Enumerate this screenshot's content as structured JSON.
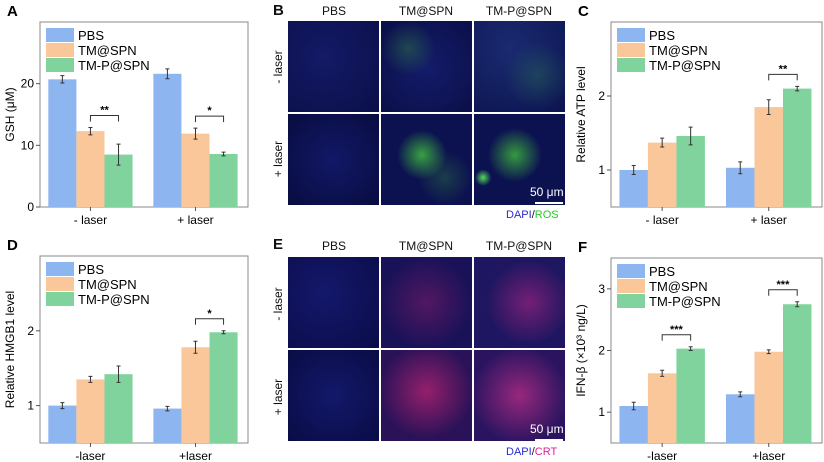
{
  "colors": {
    "PBS": "#8db5f0",
    "TM@SPN": "#f9c79a",
    "TM-P@SPN": "#80d39c"
  },
  "panels": {
    "B": {
      "letter": "B",
      "columns": [
        "PBS",
        "TM@SPN",
        "TM-P@SPN"
      ],
      "rows": [
        "- laser",
        "+ laser"
      ],
      "scale": "50 μm",
      "stain_a": "DAPI",
      "stain_sep": "/",
      "stain_b": "ROS",
      "stain_b_color": "#22cc22"
    },
    "E": {
      "letter": "E",
      "columns": [
        "PBS",
        "TM@SPN",
        "TM-P@SPN"
      ],
      "rows": [
        "- laser",
        "+ laser"
      ],
      "scale": "50 μm",
      "stain_a": "DAPI",
      "stain_sep": "/",
      "stain_b": "CRT",
      "stain_b_color": "#e0209a"
    }
  },
  "chart_data": [
    {
      "id": "A",
      "letter": "A",
      "type": "bar",
      "ylabel": "GSH (μM)",
      "categories": [
        "- laser",
        "+ laser"
      ],
      "ylim": [
        0,
        30
      ],
      "yticks": [
        0,
        10,
        20
      ],
      "series": [
        {
          "name": "PBS",
          "values": [
            20.7,
            21.6
          ],
          "errors": [
            0.6,
            0.8
          ]
        },
        {
          "name": "TM@SPN",
          "values": [
            12.3,
            11.9
          ],
          "errors": [
            0.6,
            0.9
          ]
        },
        {
          "name": "TM-P@SPN",
          "values": [
            8.5,
            8.6
          ],
          "errors": [
            1.7,
            0.3
          ]
        }
      ],
      "significance": [
        {
          "group": 0,
          "label": "**"
        },
        {
          "group": 1,
          "label": "*"
        }
      ],
      "legend": "top-left"
    },
    {
      "id": "C",
      "letter": "C",
      "type": "bar",
      "ylabel": "Relative ATP level",
      "categories": [
        "- laser",
        "+ laser"
      ],
      "ylim": [
        0.5,
        3
      ],
      "yticks": [
        1,
        2
      ],
      "series": [
        {
          "name": "PBS",
          "values": [
            1.0,
            1.03
          ],
          "errors": [
            0.06,
            0.08
          ]
        },
        {
          "name": "TM@SPN",
          "values": [
            1.37,
            1.85
          ],
          "errors": [
            0.06,
            0.1
          ]
        },
        {
          "name": "TM-P@SPN",
          "values": [
            1.46,
            2.1
          ],
          "errors": [
            0.12,
            0.03
          ]
        }
      ],
      "significance": [
        {
          "group": 1,
          "label": "**"
        }
      ],
      "legend": "top-left"
    },
    {
      "id": "D",
      "letter": "D",
      "type": "bar",
      "ylabel": "Relative HMGB1 level",
      "categories": [
        "-laser",
        "+laser"
      ],
      "ylim": [
        0.5,
        3
      ],
      "yticks": [
        1,
        2
      ],
      "series": [
        {
          "name": "PBS",
          "values": [
            1.0,
            0.96
          ],
          "errors": [
            0.04,
            0.03
          ]
        },
        {
          "name": "TM@SPN",
          "values": [
            1.35,
            1.78
          ],
          "errors": [
            0.04,
            0.08
          ]
        },
        {
          "name": "TM-P@SPN",
          "values": [
            1.42,
            1.98
          ],
          "errors": [
            0.11,
            0.02
          ]
        }
      ],
      "significance": [
        {
          "group": 1,
          "label": "*"
        }
      ],
      "legend": "top-left"
    },
    {
      "id": "F",
      "letter": "F",
      "type": "bar",
      "ylabel": "IFN-β (×10³ ng/L)",
      "categories": [
        "-laser",
        "+laser"
      ],
      "ylim": [
        0.5,
        3.5
      ],
      "yticks": [
        1,
        2,
        3
      ],
      "series": [
        {
          "name": "PBS",
          "values": [
            1.1,
            1.29
          ],
          "errors": [
            0.06,
            0.04
          ]
        },
        {
          "name": "TM@SPN",
          "values": [
            1.63,
            1.98
          ],
          "errors": [
            0.05,
            0.03
          ]
        },
        {
          "name": "TM-P@SPN",
          "values": [
            2.03,
            2.75
          ],
          "errors": [
            0.03,
            0.04
          ]
        }
      ],
      "significance": [
        {
          "group": 0,
          "label": "***"
        },
        {
          "group": 1,
          "label": "***"
        }
      ],
      "legend": "top-left"
    }
  ]
}
